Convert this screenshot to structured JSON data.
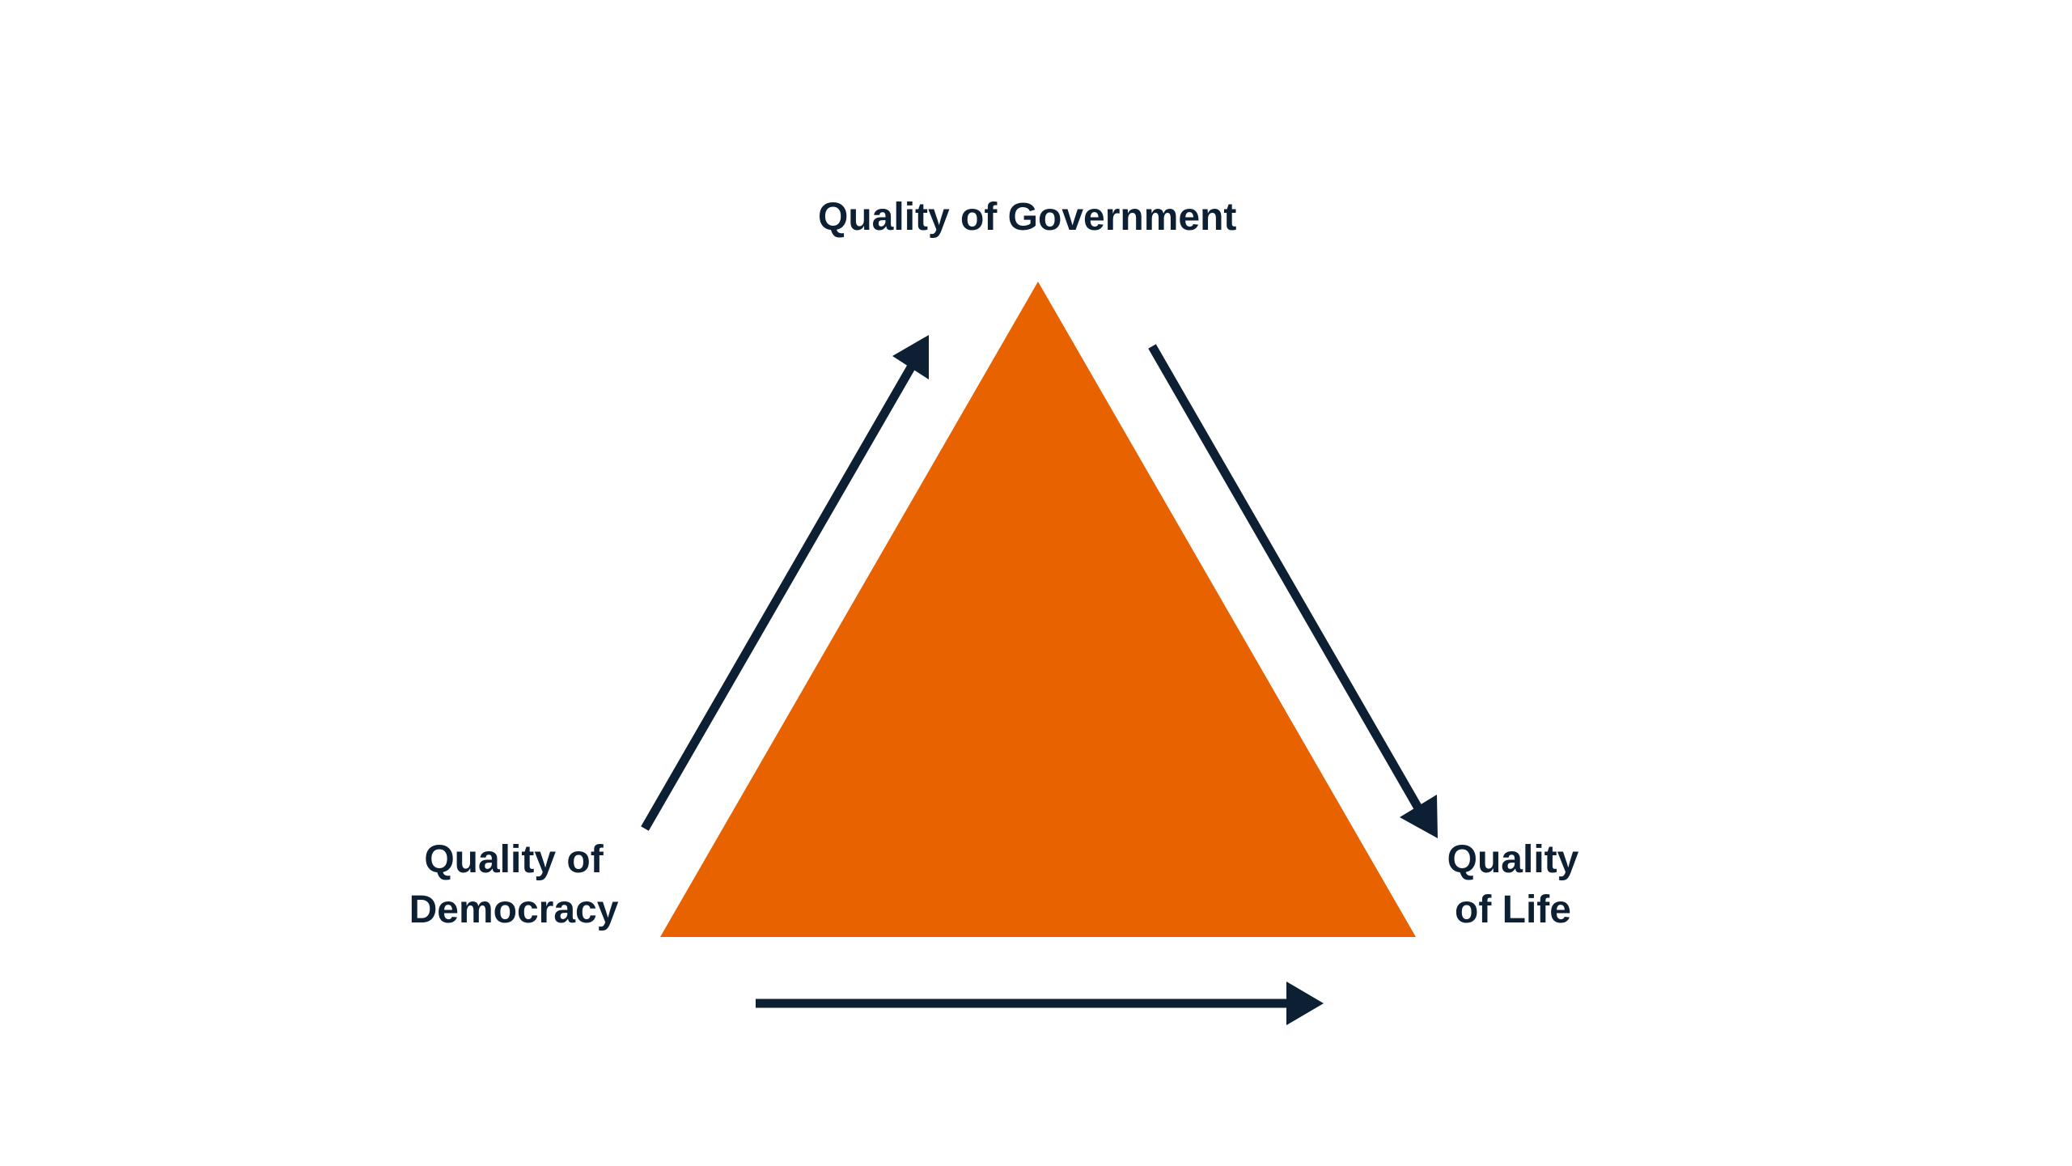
{
  "diagram": {
    "nodes": {
      "top": {
        "label": "Quality of Government"
      },
      "left": {
        "line1": "Quality of",
        "line2": "Democracy"
      },
      "right": {
        "line1": "Quality",
        "line2": "of Life"
      }
    },
    "arrows": [
      {
        "from": "left",
        "to": "top"
      },
      {
        "from": "top",
        "to": "right"
      },
      {
        "from": "left",
        "to": "right"
      }
    ],
    "colors": {
      "triangle": "#e86300",
      "arrow": "#0d1f33",
      "text": "#0d1f33",
      "background": "#ffffff"
    }
  }
}
